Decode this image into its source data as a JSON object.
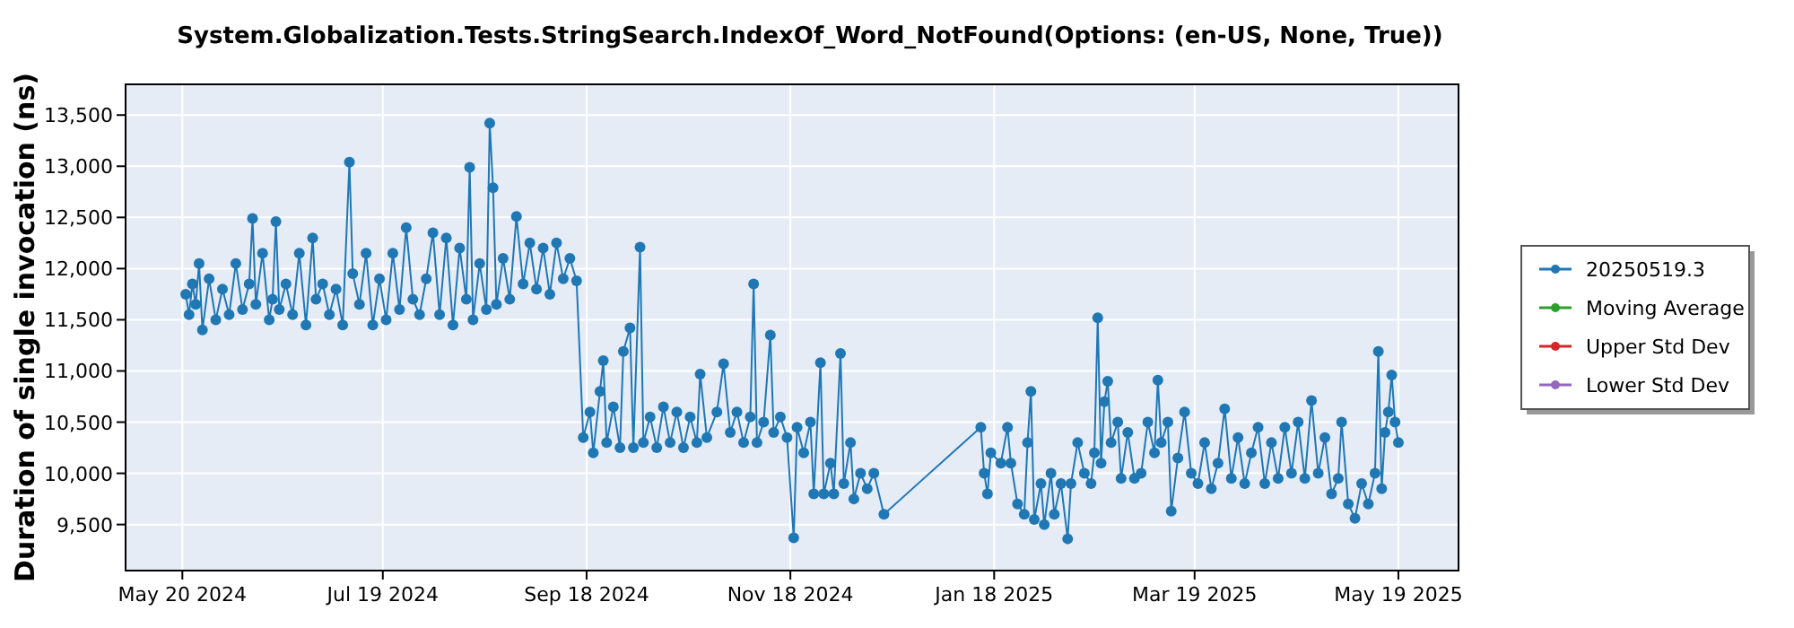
{
  "chart_data": {
    "type": "line",
    "title": "System.Globalization.Tests.StringSearch.IndexOf_Word_NotFound(Options: (en-US, None, True))",
    "ylabel": "Duration of single invocation (ns)",
    "xlim": [
      "2024-05-03",
      "2025-06-06"
    ],
    "xticks": [
      {
        "value": "2024-05-20",
        "label": "May 20 2024"
      },
      {
        "value": "2024-07-19",
        "label": "Jul 19 2024"
      },
      {
        "value": "2024-09-18",
        "label": "Sep 18 2024"
      },
      {
        "value": "2024-11-18",
        "label": "Nov 18 2024"
      },
      {
        "value": "2025-01-18",
        "label": "Jan 18 2025"
      },
      {
        "value": "2025-03-19",
        "label": "Mar 19 2025"
      },
      {
        "value": "2025-05-19",
        "label": "May 19 2025"
      }
    ],
    "ylim": [
      9050,
      13800
    ],
    "yticks": [
      {
        "value": 9500,
        "label": "9,500"
      },
      {
        "value": 10000,
        "label": "10,000"
      },
      {
        "value": 10500,
        "label": "10,500"
      },
      {
        "value": 11000,
        "label": "11,000"
      },
      {
        "value": 11500,
        "label": "11,500"
      },
      {
        "value": 12000,
        "label": "12,000"
      },
      {
        "value": 12500,
        "label": "12,500"
      },
      {
        "value": 13000,
        "label": "13,000"
      },
      {
        "value": 13500,
        "label": "13,500"
      }
    ],
    "grid": true,
    "legend": "right",
    "marker": "circle",
    "line_style": "solid",
    "series": [
      {
        "name": "20250519.3",
        "color": "#1f77b4",
        "x": [
          "2024-05-21",
          "2024-05-22",
          "2024-05-23",
          "2024-05-24",
          "2024-05-25",
          "2024-05-26",
          "2024-05-28",
          "2024-05-30",
          "2024-06-01",
          "2024-06-03",
          "2024-06-05",
          "2024-06-07",
          "2024-06-09",
          "2024-06-10",
          "2024-06-11",
          "2024-06-13",
          "2024-06-15",
          "2024-06-16",
          "2024-06-17",
          "2024-06-18",
          "2024-06-20",
          "2024-06-22",
          "2024-06-24",
          "2024-06-26",
          "2024-06-28",
          "2024-06-29",
          "2024-07-01",
          "2024-07-03",
          "2024-07-05",
          "2024-07-07",
          "2024-07-09",
          "2024-07-10",
          "2024-07-12",
          "2024-07-14",
          "2024-07-16",
          "2024-07-18",
          "2024-07-20",
          "2024-07-22",
          "2024-07-24",
          "2024-07-26",
          "2024-07-28",
          "2024-07-30",
          "2024-08-01",
          "2024-08-03",
          "2024-08-05",
          "2024-08-07",
          "2024-08-09",
          "2024-08-11",
          "2024-08-13",
          "2024-08-14",
          "2024-08-15",
          "2024-08-17",
          "2024-08-19",
          "2024-08-20",
          "2024-08-21",
          "2024-08-22",
          "2024-08-24",
          "2024-08-26",
          "2024-08-28",
          "2024-08-30",
          "2024-09-01",
          "2024-09-03",
          "2024-09-05",
          "2024-09-07",
          "2024-09-09",
          "2024-09-11",
          "2024-09-13",
          "2024-09-15",
          "2024-09-17",
          "2024-09-19",
          "2024-09-20",
          "2024-09-22",
          "2024-09-23",
          "2024-09-24",
          "2024-09-26",
          "2024-09-28",
          "2024-09-29",
          "2024-10-01",
          "2024-10-02",
          "2024-10-04",
          "2024-10-05",
          "2024-10-07",
          "2024-10-09",
          "2024-10-11",
          "2024-10-13",
          "2024-10-15",
          "2024-10-17",
          "2024-10-19",
          "2024-10-21",
          "2024-10-22",
          "2024-10-24",
          "2024-10-27",
          "2024-10-29",
          "2024-10-31",
          "2024-11-02",
          "2024-11-04",
          "2024-11-06",
          "2024-11-07",
          "2024-11-08",
          "2024-11-10",
          "2024-11-12",
          "2024-11-13",
          "2024-11-15",
          "2024-11-17",
          "2024-11-19",
          "2024-11-20",
          "2024-11-22",
          "2024-11-24",
          "2024-11-25",
          "2024-11-27",
          "2024-11-28",
          "2024-11-30",
          "2024-12-01",
          "2024-12-03",
          "2024-12-04",
          "2024-12-06",
          "2024-12-07",
          "2024-12-09",
          "2024-12-11",
          "2024-12-13",
          "2024-12-16",
          "2025-01-14",
          "2025-01-15",
          "2025-01-16",
          "2025-01-17",
          "2025-01-20",
          "2025-01-22",
          "2025-01-23",
          "2025-01-25",
          "2025-01-27",
          "2025-01-28",
          "2025-01-29",
          "2025-01-30",
          "2025-02-01",
          "2025-02-02",
          "2025-02-04",
          "2025-02-05",
          "2025-02-07",
          "2025-02-09",
          "2025-02-10",
          "2025-02-12",
          "2025-02-14",
          "2025-02-16",
          "2025-02-17",
          "2025-02-18",
          "2025-02-19",
          "2025-02-20",
          "2025-02-21",
          "2025-02-22",
          "2025-02-24",
          "2025-02-25",
          "2025-02-27",
          "2025-03-01",
          "2025-03-03",
          "2025-03-05",
          "2025-03-07",
          "2025-03-08",
          "2025-03-09",
          "2025-03-11",
          "2025-03-12",
          "2025-03-14",
          "2025-03-16",
          "2025-03-18",
          "2025-03-20",
          "2025-03-22",
          "2025-03-24",
          "2025-03-26",
          "2025-03-28",
          "2025-03-30",
          "2025-04-01",
          "2025-04-03",
          "2025-04-05",
          "2025-04-07",
          "2025-04-09",
          "2025-04-11",
          "2025-04-13",
          "2025-04-15",
          "2025-04-17",
          "2025-04-19",
          "2025-04-21",
          "2025-04-23",
          "2025-04-25",
          "2025-04-27",
          "2025-04-29",
          "2025-05-01",
          "2025-05-02",
          "2025-05-04",
          "2025-05-06",
          "2025-05-08",
          "2025-05-10",
          "2025-05-12",
          "2025-05-13",
          "2025-05-14",
          "2025-05-15",
          "2025-05-16",
          "2025-05-17",
          "2025-05-18",
          "2025-05-19"
        ],
        "values": [
          11750,
          11550,
          11850,
          11650,
          12050,
          11400,
          11900,
          11500,
          11800,
          11550,
          12050,
          11600,
          11850,
          12490,
          11650,
          12150,
          11500,
          11700,
          12460,
          11600,
          11850,
          11550,
          12150,
          11450,
          12300,
          11700,
          11850,
          11550,
          11800,
          11450,
          13040,
          11950,
          11650,
          12150,
          11450,
          11900,
          11500,
          12150,
          11600,
          12400,
          11700,
          11550,
          11900,
          12350,
          11550,
          12300,
          11450,
          12200,
          11700,
          12990,
          11500,
          12050,
          11600,
          13420,
          12790,
          11650,
          12100,
          11700,
          12510,
          11850,
          12250,
          11800,
          12200,
          11750,
          12250,
          11900,
          12100,
          11880,
          10350,
          10600,
          10200,
          10800,
          11100,
          10300,
          10650,
          10250,
          11190,
          11420,
          10250,
          12210,
          10300,
          10550,
          10250,
          10650,
          10300,
          10600,
          10250,
          10550,
          10300,
          10970,
          10350,
          10600,
          11070,
          10400,
          10600,
          10300,
          10550,
          11850,
          10300,
          10500,
          11350,
          10400,
          10550,
          10350,
          9370,
          10450,
          10200,
          10500,
          9800,
          11080,
          9800,
          10100,
          9800,
          11170,
          9900,
          10300,
          9750,
          10000,
          9850,
          10000,
          9600,
          10450,
          10000,
          9800,
          10200,
          10100,
          10450,
          10100,
          9700,
          9600,
          10300,
          10800,
          9550,
          9900,
          9500,
          10000,
          9600,
          9900,
          9360,
          9900,
          10300,
          10000,
          9900,
          10200,
          11520,
          10100,
          10700,
          10900,
          10300,
          10500,
          9950,
          10400,
          9950,
          10000,
          10500,
          10200,
          10910,
          10300,
          10500,
          9630,
          10150,
          10600,
          10000,
          9900,
          10300,
          9850,
          10100,
          10630,
          9950,
          10350,
          9900,
          10200,
          10450,
          9900,
          10300,
          9950,
          10450,
          10000,
          10500,
          9950,
          10710,
          10000,
          10350,
          9800,
          9950,
          10500,
          9700,
          9560,
          9900,
          9700,
          10000,
          11190,
          9850,
          10400,
          10600,
          10960,
          10500,
          10300
        ]
      },
      {
        "name": "Moving Average",
        "color": "#2ca02c"
      },
      {
        "name": "Upper Std Dev",
        "color": "#d62728"
      },
      {
        "name": "Lower Std Dev",
        "color": "#9467bd"
      }
    ]
  }
}
